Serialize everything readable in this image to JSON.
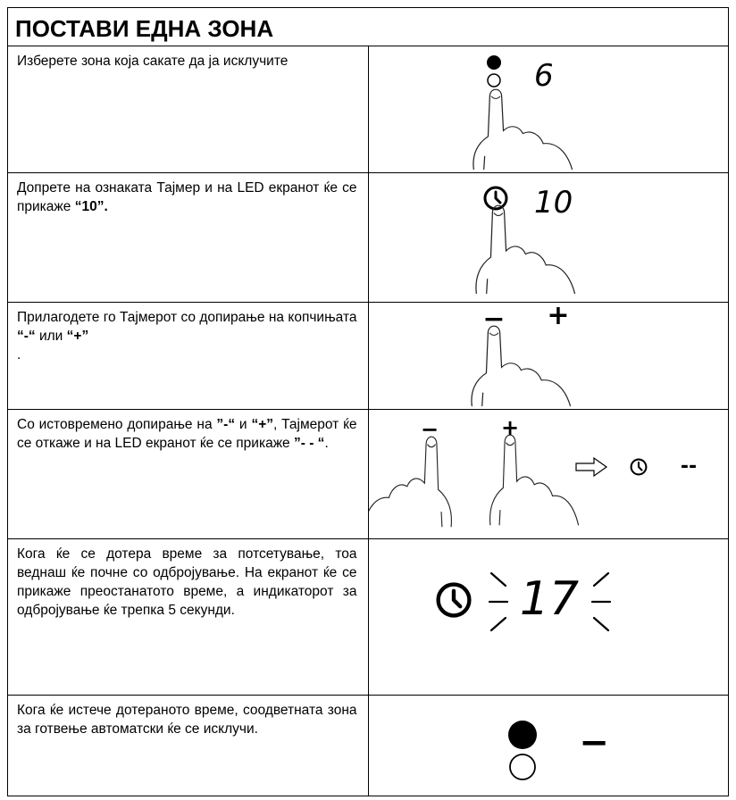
{
  "header": {
    "title": "ПОСТАВИ ЕДНА ЗОНА"
  },
  "rows": [
    {
      "description": [
        "Изберете зона која сакате да ја исклучите"
      ],
      "display": [
        "6"
      ]
    },
    {
      "description": [
        "Допрете на ознаката Тајмер и на LED екранот ќе се прикаже ",
        "“10”."
      ],
      "display": [
        "10"
      ]
    },
    {
      "description": [
        "Прилагодете го Тајмерот со допирање на копчињата ",
        "“-“",
        " или ",
        "“+”",
        " ."
      ],
      "display": [
        "−",
        "+"
      ]
    },
    {
      "description": [
        "Со истовремено допирање на ",
        "”-“",
        " и ",
        "“+”",
        ", Тајмерот ќе се откаже и на LED екранот ќе се прикаже ",
        "”- - “",
        "."
      ],
      "display": [
        "−",
        "+",
        "--"
      ]
    },
    {
      "description": [
        "Кога ќе се дотера време за потсетување, тоа веднаш ќе почне со одбројување. На екранот ќе се прикаже преостанатото време, а индикаторот за одбројување ќе трепка 5 секунди."
      ],
      "display": [
        "17"
      ]
    },
    {
      "description": [
        "Кога ќе истече дотераното време, соодветната зона за готвење автоматски ќе се исклучи."
      ],
      "display": [
        "−"
      ]
    }
  ]
}
